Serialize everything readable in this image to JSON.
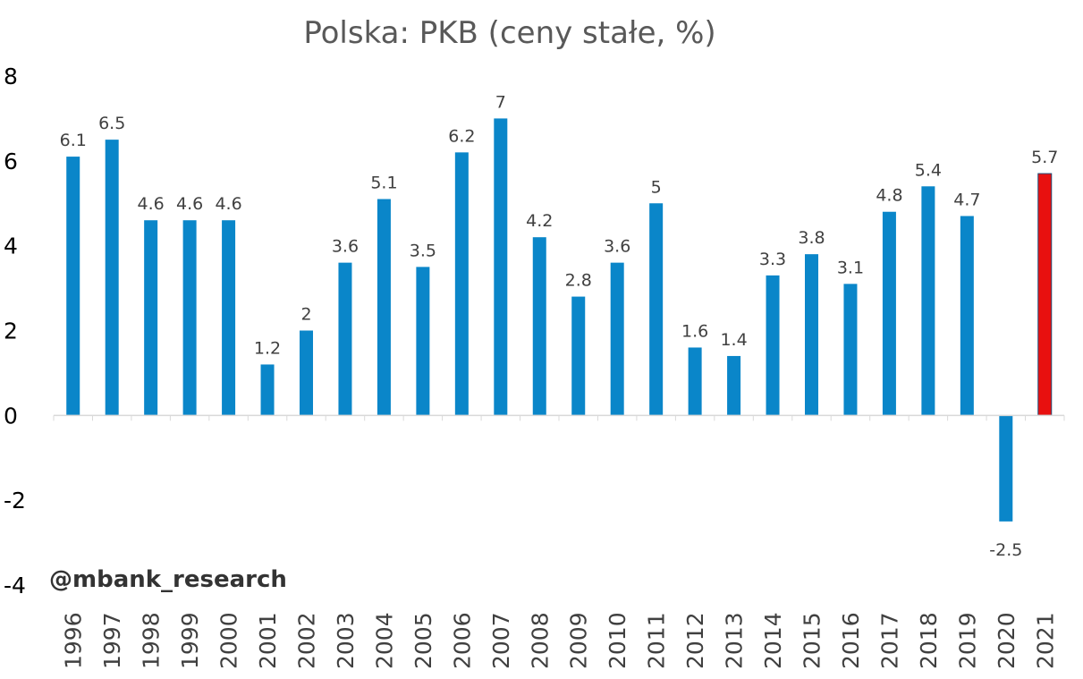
{
  "chart_data": {
    "type": "bar",
    "title": "Polska: PKB (ceny stałe, %)",
    "xlabel": "",
    "ylabel": "",
    "ylim": [
      -4,
      8
    ],
    "yticks": [
      "8",
      "6",
      "4",
      "2",
      "0",
      "-2",
      "-4"
    ],
    "grid": false,
    "categories": [
      "1996",
      "1997",
      "1998",
      "1999",
      "2000",
      "2001",
      "2002",
      "2003",
      "2004",
      "2005",
      "2006",
      "2007",
      "2008",
      "2009",
      "2010",
      "2011",
      "2012",
      "2013",
      "2014",
      "2015",
      "2016",
      "2017",
      "2018",
      "2019",
      "2020",
      "2021"
    ],
    "values": [
      6.1,
      6.5,
      4.6,
      4.6,
      4.6,
      1.2,
      2,
      3.6,
      5.1,
      3.5,
      6.2,
      7,
      4.2,
      2.8,
      3.6,
      5,
      1.6,
      1.4,
      3.3,
      3.8,
      3.1,
      4.8,
      5.4,
      4.7,
      -2.5,
      5.7
    ],
    "data_labels": [
      "6.1",
      "6.5",
      "4.6",
      "4.6",
      "4.6",
      "1.2",
      "2",
      "3.6",
      "5.1",
      "3.5",
      "6.2",
      "7",
      "4.2",
      "2.8",
      "3.6",
      "5",
      "1.6",
      "1.4",
      "3.3",
      "3.8",
      "3.1",
      "4.8",
      "5.4",
      "4.7",
      "-2.5",
      "5.7"
    ],
    "colors": {
      "bar": "#0a86c9",
      "highlight": "#e8100f",
      "axis": "#d9d9d9"
    },
    "highlight_category": "2021"
  },
  "watermark": "@mbank_research"
}
